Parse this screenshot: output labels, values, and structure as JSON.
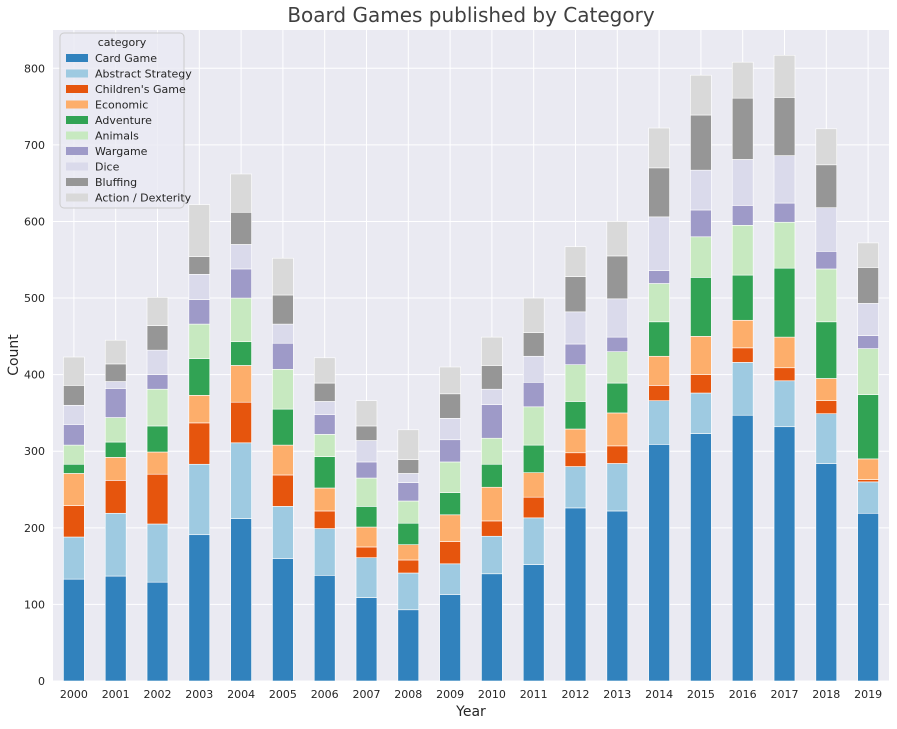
{
  "chart_data": {
    "type": "bar",
    "stacked": true,
    "title": "Board Games published by Category",
    "xlabel": "Year",
    "ylabel": "Count",
    "ylim": [
      0,
      850
    ],
    "yticks": [
      0,
      100,
      200,
      300,
      400,
      500,
      600,
      700,
      800
    ],
    "grid": true,
    "legend": {
      "title": "category",
      "position": "top-left"
    },
    "categories": [
      "2000",
      "2001",
      "2002",
      "2003",
      "2004",
      "2005",
      "2006",
      "2007",
      "2008",
      "2009",
      "2010",
      "2011",
      "2012",
      "2013",
      "2014",
      "2015",
      "2016",
      "2017",
      "2018",
      "2019"
    ],
    "series": [
      {
        "name": "Card Game",
        "color": "#3182bd",
        "values": [
          133,
          137,
          129,
          191,
          212,
          160,
          138,
          109,
          93,
          113,
          140,
          152,
          226,
          222,
          309,
          323,
          347,
          332,
          284,
          219
        ]
      },
      {
        "name": "Abstract Strategy",
        "color": "#9ecae1",
        "values": [
          55,
          82,
          76,
          92,
          99,
          68,
          61,
          52,
          48,
          40,
          49,
          61,
          54,
          62,
          57,
          53,
          69,
          60,
          65,
          41
        ]
      },
      {
        "name": "Children's Game",
        "color": "#e6550d",
        "values": [
          41,
          43,
          65,
          54,
          53,
          41,
          23,
          14,
          17,
          29,
          20,
          27,
          18,
          23,
          20,
          24,
          19,
          17,
          17,
          3
        ]
      },
      {
        "name": "Economic",
        "color": "#fdae6b",
        "values": [
          42,
          30,
          29,
          36,
          48,
          39,
          30,
          26,
          20,
          35,
          44,
          32,
          31,
          43,
          38,
          50,
          36,
          40,
          29,
          27
        ]
      },
      {
        "name": "Adventure",
        "color": "#31a354",
        "values": [
          12,
          20,
          34,
          48,
          31,
          47,
          41,
          27,
          28,
          29,
          30,
          36,
          36,
          39,
          45,
          77,
          59,
          90,
          74,
          84
        ]
      },
      {
        "name": "Animals",
        "color": "#c7e9c0",
        "values": [
          25,
          32,
          48,
          45,
          57,
          52,
          29,
          37,
          29,
          40,
          34,
          50,
          48,
          41,
          50,
          53,
          65,
          60,
          69,
          60
        ]
      },
      {
        "name": "Wargame",
        "color": "#9e9ac8",
        "values": [
          27,
          38,
          19,
          32,
          38,
          34,
          26,
          21,
          24,
          29,
          44,
          32,
          27,
          19,
          17,
          35,
          26,
          25,
          23,
          17
        ]
      },
      {
        "name": "Dice",
        "color": "#dadaeb",
        "values": [
          25,
          9,
          32,
          33,
          32,
          25,
          17,
          28,
          12,
          28,
          20,
          34,
          42,
          50,
          70,
          52,
          60,
          62,
          57,
          42
        ]
      },
      {
        "name": "Bluffing",
        "color": "#969696",
        "values": [
          26,
          23,
          32,
          23,
          42,
          38,
          24,
          19,
          18,
          32,
          31,
          31,
          46,
          56,
          64,
          72,
          80,
          76,
          56,
          47
        ]
      },
      {
        "name": "Action / Dexterity",
        "color": "#d9d9d9",
        "values": [
          37,
          31,
          37,
          68,
          50,
          48,
          33,
          33,
          39,
          35,
          37,
          45,
          39,
          45,
          52,
          52,
          47,
          55,
          47,
          32
        ]
      }
    ]
  }
}
